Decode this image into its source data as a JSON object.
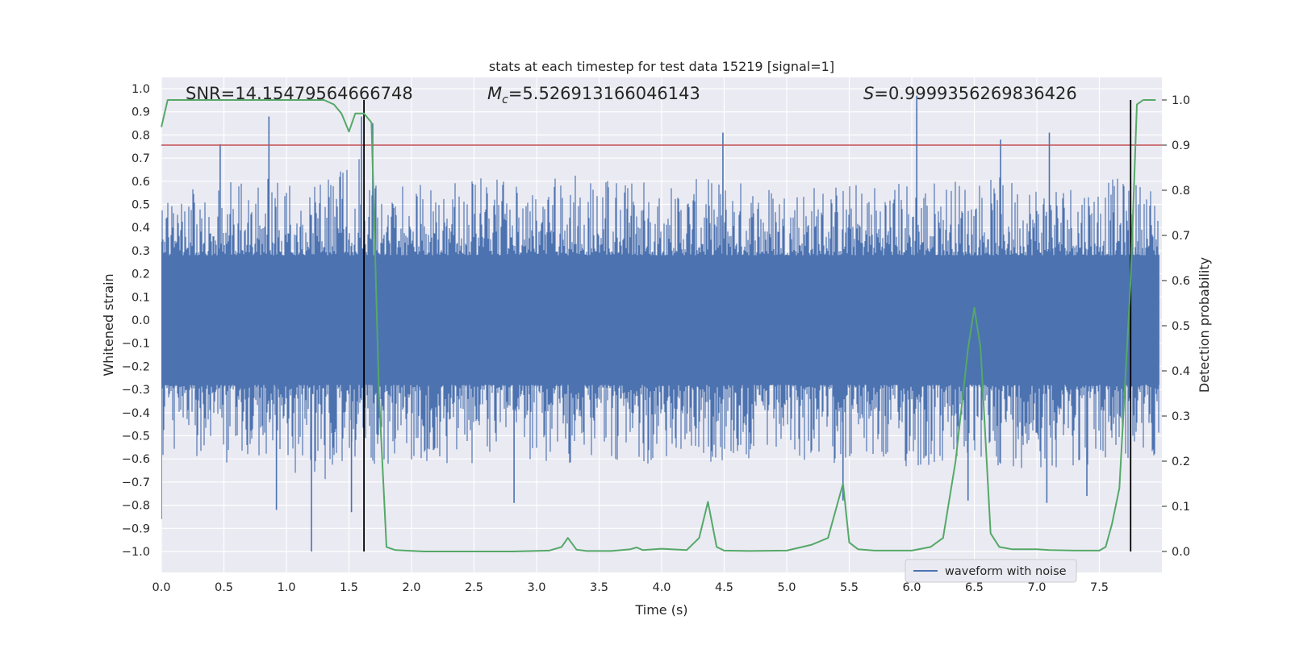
{
  "chart_data": {
    "type": "line",
    "title": "stats at each timestep for test data 15219 [signal=1]",
    "xlabel": "Time (s)",
    "ylabel_left": "Whitened strain",
    "ylabel_right": "Detection probability",
    "xlim": [
      0.0,
      8.0
    ],
    "ylim_left": [
      -1.09,
      1.05
    ],
    "ylim_right": [
      -0.05,
      1.0
    ],
    "x_ticks": [
      "0.0",
      "0.5",
      "1.0",
      "1.5",
      "2.0",
      "2.5",
      "3.0",
      "3.5",
      "4.0",
      "4.5",
      "5.0",
      "5.5",
      "6.0",
      "6.5",
      "7.0",
      "7.5"
    ],
    "y_left_ticks": [
      "1.0",
      "0.9",
      "0.8",
      "0.7",
      "0.6",
      "0.5",
      "0.4",
      "0.3",
      "0.2",
      "0.1",
      "0.0",
      "−0.1",
      "−0.2",
      "−0.3",
      "−0.4",
      "−0.5",
      "−0.6",
      "−0.7",
      "−0.8",
      "−0.9",
      "−1.0"
    ],
    "y_right_ticks": [
      "1.0",
      "0.9",
      "0.8",
      "0.7",
      "0.6",
      "0.5",
      "0.4",
      "0.3",
      "0.2",
      "0.1",
      "0.0"
    ],
    "grid": true,
    "legend": {
      "location": "lower-right",
      "entries": [
        "waveform with noise"
      ]
    },
    "annotations": {
      "snr": "SNR=14.15479564666748",
      "mc_symbol": "M",
      "mc_subscript": "c",
      "mc_value": "=5.526913166046143",
      "s_symbol": "S",
      "s_value": "=0.9999356269836426"
    },
    "threshold_line": {
      "value_right_axis": 0.9,
      "color": "#c44e52"
    },
    "vertical_markers": [
      1.62,
      7.75
    ],
    "colors": {
      "waveform": "#4c72b0",
      "probability": "#55a868",
      "threshold": "#c44e52",
      "markers": "#000000",
      "plot_bg": "#eaeaf2"
    },
    "series": [
      {
        "name": "waveform with noise",
        "axis": "left",
        "description_only": false,
        "envelope_x": [
          0.0,
          0.5,
          1.0,
          1.2,
          1.5,
          1.62,
          1.7,
          2.0,
          2.5,
          3.0,
          3.5,
          4.0,
          4.5,
          5.0,
          5.5,
          6.0,
          6.5,
          7.0,
          7.5,
          8.0
        ],
        "envelope_upper": [
          0.55,
          0.6,
          0.62,
          0.6,
          0.7,
          0.82,
          0.6,
          0.62,
          0.62,
          0.6,
          0.65,
          0.6,
          0.62,
          0.6,
          0.6,
          0.62,
          0.62,
          0.62,
          0.62,
          0.6
        ],
        "envelope_lower": [
          -0.6,
          -0.62,
          -0.65,
          -0.7,
          -0.68,
          -0.55,
          -0.65,
          -0.62,
          -0.62,
          -0.62,
          -0.62,
          -0.62,
          -0.62,
          -0.62,
          -0.62,
          -0.66,
          -0.64,
          -0.64,
          -0.64,
          -0.6
        ],
        "spikes": [
          {
            "x": 0.47,
            "y": 0.76
          },
          {
            "x": 0.86,
            "y": 0.88
          },
          {
            "x": 1.6,
            "y": 0.88
          },
          {
            "x": 1.69,
            "y": 0.85
          },
          {
            "x": 4.49,
            "y": 0.81
          },
          {
            "x": 6.04,
            "y": 0.97
          },
          {
            "x": 6.71,
            "y": 0.78
          },
          {
            "x": 7.1,
            "y": 0.81
          },
          {
            "x": 1.2,
            "y": -1.0
          },
          {
            "x": 0.92,
            "y": -0.82
          },
          {
            "x": 1.52,
            "y": -0.83
          },
          {
            "x": 2.82,
            "y": -0.79
          },
          {
            "x": 6.45,
            "y": -0.78
          },
          {
            "x": 7.08,
            "y": -0.79
          },
          {
            "x": 7.4,
            "y": -0.76
          },
          {
            "x": 5.45,
            "y": -0.78
          },
          {
            "x": 0.0,
            "y": -0.86
          }
        ]
      },
      {
        "name": "",
        "axis": "right",
        "x": [
          0.0,
          0.05,
          0.1,
          0.3,
          0.6,
          1.0,
          1.3,
          1.38,
          1.44,
          1.5,
          1.55,
          1.62,
          1.68,
          1.74,
          1.8,
          1.87,
          1.95,
          2.1,
          2.4,
          2.8,
          3.1,
          3.2,
          3.25,
          3.32,
          3.4,
          3.6,
          3.75,
          3.8,
          3.85,
          4.0,
          4.2,
          4.3,
          4.37,
          4.44,
          4.5,
          4.7,
          5.0,
          5.2,
          5.33,
          5.4,
          5.45,
          5.5,
          5.57,
          5.7,
          6.0,
          6.15,
          6.25,
          6.35,
          6.45,
          6.5,
          6.55,
          6.63,
          6.7,
          6.8,
          7.0,
          7.1,
          7.3,
          7.5,
          7.55,
          7.6,
          7.66,
          7.75,
          7.8,
          7.85,
          7.9,
          7.95
        ],
        "y": [
          0.94,
          1.0,
          1.0,
          1.0,
          1.0,
          1.0,
          1.0,
          0.99,
          0.97,
          0.93,
          0.97,
          0.97,
          0.95,
          0.35,
          0.01,
          0.003,
          0.002,
          0.0,
          0.0,
          0.0,
          0.002,
          0.01,
          0.03,
          0.004,
          0.001,
          0.001,
          0.005,
          0.009,
          0.003,
          0.006,
          0.003,
          0.03,
          0.11,
          0.01,
          0.002,
          0.001,
          0.002,
          0.015,
          0.03,
          0.1,
          0.15,
          0.02,
          0.005,
          0.002,
          0.002,
          0.01,
          0.03,
          0.2,
          0.45,
          0.54,
          0.45,
          0.04,
          0.01,
          0.005,
          0.005,
          0.003,
          0.002,
          0.002,
          0.01,
          0.06,
          0.14,
          0.6,
          0.99,
          1.0,
          1.0,
          1.0
        ]
      }
    ]
  }
}
